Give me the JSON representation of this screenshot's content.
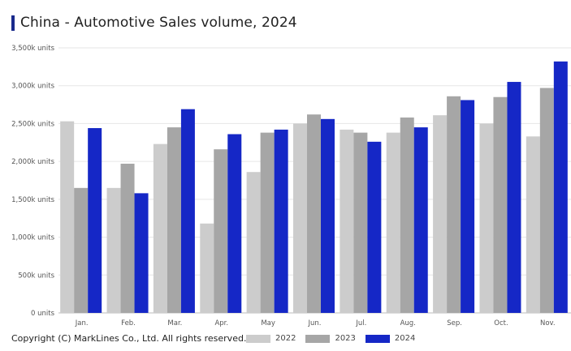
{
  "title": "China - Automotive Sales volume, 2024",
  "copyright": "Copyright (C) MarkLines Co., Ltd. All rights reserved.",
  "chart_data": {
    "type": "bar",
    "title": "China - Automotive Sales volume, 2024",
    "categories": [
      "Jan.",
      "Feb.",
      "Mar.",
      "Apr.",
      "May",
      "Jun.",
      "Jul.",
      "Aug.",
      "Sep.",
      "Oct.",
      "Nov."
    ],
    "y_ticks": [
      "0 units",
      "500k units",
      "1,000k units",
      "1,500k units",
      "2,000k units",
      "2,500k units",
      "3,000k units",
      "3,500k units"
    ],
    "ylim": [
      0,
      3500
    ],
    "y_unit": "k units",
    "grid": true,
    "legend_position": "bottom",
    "series": [
      {
        "name": "2022",
        "color": "#cccccc",
        "values": [
          2530,
          1650,
          2230,
          1180,
          1860,
          2500,
          2420,
          2380,
          2610,
          2500,
          2330
        ]
      },
      {
        "name": "2023",
        "color": "#a6a6a6",
        "values": [
          1650,
          1970,
          2450,
          2160,
          2380,
          2620,
          2380,
          2580,
          2860,
          2850,
          2970
        ]
      },
      {
        "name": "2024",
        "color": "#1527c6",
        "values": [
          2440,
          1580,
          2690,
          2360,
          2420,
          2560,
          2260,
          2450,
          2810,
          3050,
          3320
        ]
      }
    ]
  }
}
